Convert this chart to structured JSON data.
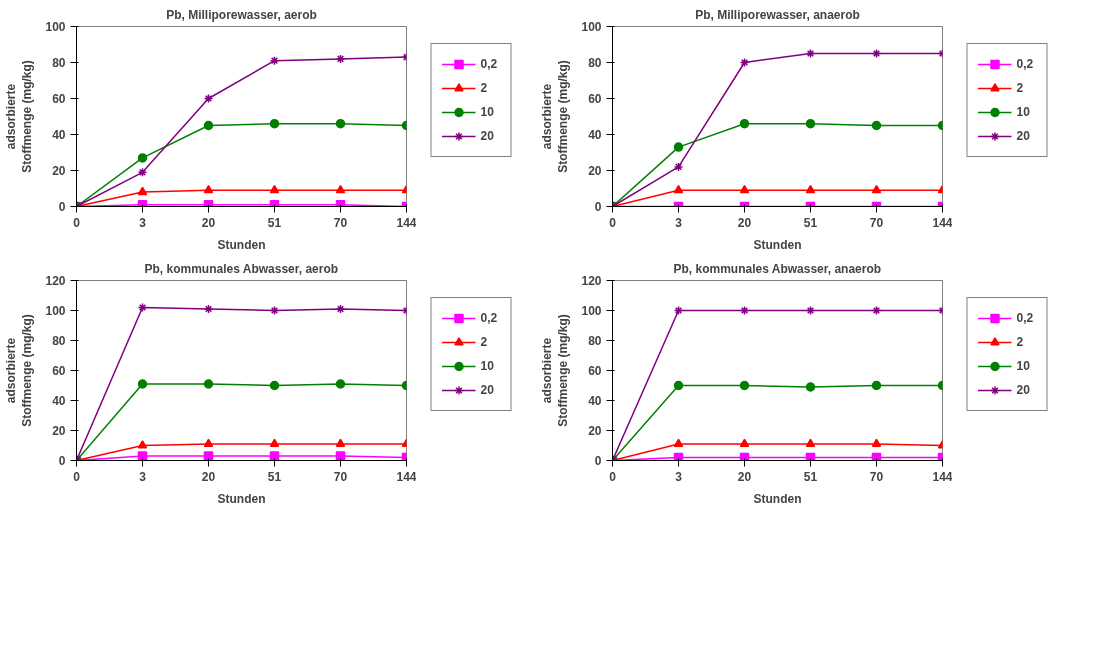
{
  "chart_data": [
    {
      "type": "line",
      "title": "Pb, Milliporewasser, aerob",
      "xlabel": "Stunden",
      "ylabel": "adsorbierte\nStoffmenge (mg/kg)",
      "categories": [
        "0",
        "3",
        "20",
        "51",
        "70",
        "144"
      ],
      "ylim": [
        0,
        100
      ],
      "yticks": [
        0,
        20,
        40,
        60,
        80,
        100
      ],
      "grid": false,
      "legend": "right",
      "series": [
        {
          "name": "0,2",
          "color": "#ff00ff",
          "marker": "square",
          "values": [
            0,
            1,
            1,
            1,
            1,
            0
          ]
        },
        {
          "name": "2",
          "color": "#ff0000",
          "marker": "triangle",
          "values": [
            0,
            8,
            9,
            9,
            9,
            9
          ]
        },
        {
          "name": "10",
          "color": "#008000",
          "marker": "circle",
          "values": [
            0,
            27,
            45,
            46,
            46,
            45
          ]
        },
        {
          "name": "20",
          "color": "#800080",
          "marker": "cross",
          "values": [
            0,
            19,
            60,
            81,
            82,
            83
          ]
        }
      ]
    },
    {
      "type": "line",
      "title": "Pb, Milliporewasser, anaerob",
      "xlabel": "Stunden",
      "ylabel": "adsorbierte\nStoffmenge (mg/kg)",
      "categories": [
        "0",
        "3",
        "20",
        "51",
        "70",
        "144"
      ],
      "ylim": [
        0,
        100
      ],
      "yticks": [
        0,
        20,
        40,
        60,
        80,
        100
      ],
      "grid": false,
      "legend": "right",
      "series": [
        {
          "name": "0,2",
          "color": "#ff00ff",
          "marker": "square",
          "values": [
            0,
            0,
            0,
            0,
            0,
            0
          ]
        },
        {
          "name": "2",
          "color": "#ff0000",
          "marker": "triangle",
          "values": [
            0,
            9,
            9,
            9,
            9,
            9
          ]
        },
        {
          "name": "10",
          "color": "#008000",
          "marker": "circle",
          "values": [
            0,
            33,
            46,
            46,
            45,
            45
          ]
        },
        {
          "name": "20",
          "color": "#800080",
          "marker": "cross",
          "values": [
            0,
            22,
            80,
            85,
            85,
            85
          ]
        }
      ]
    },
    {
      "type": "line",
      "title": "Pb, kommunales Abwasser, aerob",
      "xlabel": "Stunden",
      "ylabel": "adsorbierte\nStoffmenge (mg/kg)",
      "categories": [
        "0",
        "3",
        "20",
        "51",
        "70",
        "144"
      ],
      "ylim": [
        0,
        120
      ],
      "yticks": [
        0,
        20,
        40,
        60,
        80,
        100,
        120
      ],
      "grid": false,
      "legend": "right",
      "series": [
        {
          "name": "0,2",
          "color": "#ff00ff",
          "marker": "square",
          "values": [
            0,
            3,
            3,
            3,
            3,
            2
          ]
        },
        {
          "name": "2",
          "color": "#ff0000",
          "marker": "triangle",
          "values": [
            0,
            10,
            11,
            11,
            11,
            11
          ]
        },
        {
          "name": "10",
          "color": "#008000",
          "marker": "circle",
          "values": [
            0,
            51,
            51,
            50,
            51,
            50
          ]
        },
        {
          "name": "20",
          "color": "#800080",
          "marker": "cross",
          "values": [
            0,
            102,
            101,
            100,
            101,
            100
          ]
        }
      ]
    },
    {
      "type": "line",
      "title": "Pb, kommunales Abwasser, anaerob",
      "xlabel": "Stunden",
      "ylabel": "adsorbierte\nStoffmenge (mg/kg)",
      "categories": [
        "0",
        "3",
        "20",
        "51",
        "70",
        "144"
      ],
      "ylim": [
        0,
        120
      ],
      "yticks": [
        0,
        20,
        40,
        60,
        80,
        100,
        120
      ],
      "grid": false,
      "legend": "right",
      "series": [
        {
          "name": "0,2",
          "color": "#ff00ff",
          "marker": "square",
          "values": [
            0,
            2,
            2,
            2,
            2,
            2
          ]
        },
        {
          "name": "2",
          "color": "#ff0000",
          "marker": "triangle",
          "values": [
            0,
            11,
            11,
            11,
            11,
            10
          ]
        },
        {
          "name": "10",
          "color": "#008000",
          "marker": "circle",
          "values": [
            0,
            50,
            50,
            49,
            50,
            50
          ]
        },
        {
          "name": "20",
          "color": "#800080",
          "marker": "cross",
          "values": [
            0,
            100,
            100,
            100,
            100,
            100
          ]
        }
      ]
    }
  ]
}
